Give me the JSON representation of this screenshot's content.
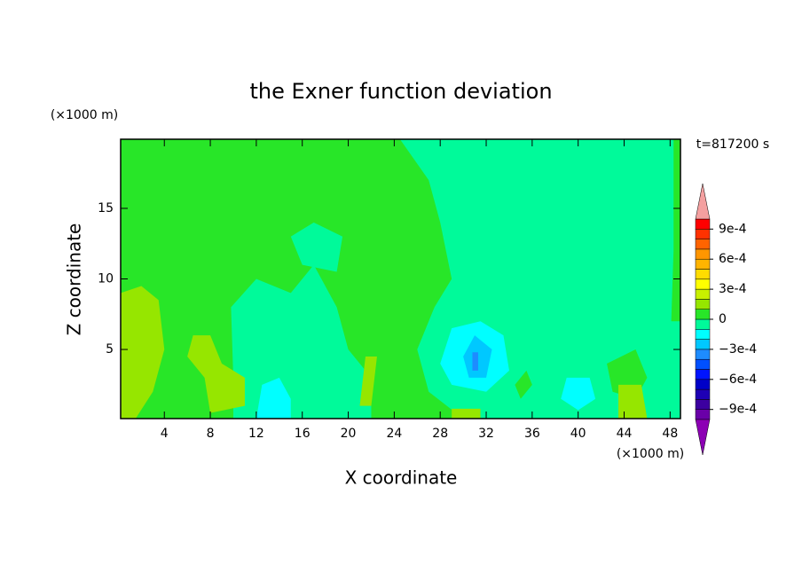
{
  "chart_data": {
    "type": "contour",
    "title": "the Exner function deviation",
    "x_label": "X coordinate",
    "y_label": "Z coordinate",
    "x_unit": "(×1000 m)",
    "y_unit": "(×1000 m)",
    "time_label": "t=817200 s",
    "xlim": [
      0.2,
      48.9
    ],
    "ylim": [
      0.1,
      19.9
    ],
    "xticks": [
      4,
      8,
      12,
      16,
      20,
      24,
      28,
      32,
      36,
      40,
      44,
      48
    ],
    "yticks": [
      5,
      10,
      15
    ],
    "background_level": 0,
    "colorbar": {
      "levels": [
        -0.001,
        -0.0009,
        -0.0008,
        -0.0007,
        -0.0006,
        -0.0005,
        -0.0004,
        -0.0003,
        -0.0002,
        -0.0001,
        0,
        0.0001,
        0.0002,
        0.0003,
        0.0004,
        0.0005,
        0.0006,
        0.0007,
        0.0008,
        0.0009,
        0.001
      ],
      "colors": [
        "#6a00a8",
        "#3c00a0",
        "#1e00b4",
        "#0000c8",
        "#0014ff",
        "#0050ff",
        "#1e8cff",
        "#00c8ff",
        "#00ffff",
        "#00fa9a",
        "#28e628",
        "#96e600",
        "#c8f000",
        "#ffff00",
        "#ffdc00",
        "#ffb400",
        "#ff9600",
        "#ff6400",
        "#ff3200",
        "#ff0000"
      ],
      "over_color": "#f4a0a0",
      "under_color": "#8c00b4",
      "ticks": [
        {
          "value": 0.0009,
          "label": "9e-4"
        },
        {
          "value": 0.0006,
          "label": "6e-4"
        },
        {
          "value": 0.0003,
          "label": "3e-4"
        },
        0,
        {
          "value": -0.0003,
          "label": "−3e-4"
        },
        {
          "value": -0.0006,
          "label": "−6e-4"
        },
        {
          "value": -0.0009,
          "label": "−9e-4"
        }
      ]
    },
    "regions": [
      {
        "level": -0.0001,
        "x": [
          24.5,
          48.9,
          48.9,
          30,
          27,
          26,
          27.5,
          29,
          28,
          27
        ],
        "y": [
          19.9,
          19.9,
          0.1,
          0.1,
          2,
          5,
          8,
          10,
          14,
          17
        ]
      },
      {
        "level": 0,
        "x": [
          48.3,
          48.9,
          48.9,
          48.1,
          48.3
        ],
        "y": [
          19.9,
          19.9,
          7,
          7,
          12
        ]
      },
      {
        "level": -0.0001,
        "x": [
          10,
          10,
          9.8,
          12,
          15,
          17,
          19,
          20,
          22,
          22
        ],
        "y": [
          0.1,
          3,
          8,
          10,
          9,
          11,
          8,
          5,
          3,
          0.1
        ]
      },
      {
        "level": -0.0001,
        "x": [
          15,
          17,
          19.5,
          19,
          16
        ],
        "y": [
          13,
          14,
          13,
          10.5,
          11
        ]
      },
      {
        "level": -0.0002,
        "x": [
          28,
          29,
          31.5,
          33.5,
          34,
          32,
          29
        ],
        "y": [
          4,
          6.5,
          7,
          6,
          3.5,
          2,
          2.5
        ]
      },
      {
        "level": -0.0003,
        "x": [
          30,
          31,
          32.5,
          32,
          30.5
        ],
        "y": [
          4.5,
          6,
          5,
          3,
          3
        ]
      },
      {
        "level": -0.0004,
        "x": [
          30.8,
          30.8,
          31.3,
          31.3
        ],
        "y": [
          3.5,
          4.8,
          4.8,
          3.5
        ]
      },
      {
        "level": -0.0002,
        "x": [
          12,
          12.5,
          14,
          15,
          15
        ],
        "y": [
          0.1,
          2.5,
          3,
          1.5,
          0.1
        ]
      },
      {
        "level": -0.0002,
        "x": [
          38.5,
          39,
          41,
          41.5,
          40
        ],
        "y": [
          1.5,
          3,
          3,
          1.5,
          0.7
        ]
      },
      {
        "level": 0,
        "x": [
          42.5,
          43,
          45,
          46,
          45
        ],
        "y": [
          4,
          2,
          1.5,
          3,
          5
        ]
      },
      {
        "level": 0,
        "x": [
          34.5,
          35.5,
          36,
          35
        ],
        "y": [
          2.5,
          3.5,
          2.5,
          1.5
        ]
      },
      {
        "level": 0.0001,
        "x": [
          0.2,
          2,
          3.5,
          4,
          3,
          1.5,
          0.2
        ],
        "y": [
          9,
          9.5,
          8.5,
          5,
          2,
          0.1,
          0.1
        ]
      },
      {
        "level": 0.0001,
        "x": [
          6.5,
          8,
          9,
          11,
          11,
          8,
          7.5,
          6
        ],
        "y": [
          6,
          6,
          4,
          3,
          1,
          0.5,
          3,
          4.5
        ]
      },
      {
        "level": 0.0001,
        "x": [
          21,
          21.5,
          22.5,
          22
        ],
        "y": [
          1,
          4.5,
          4.5,
          1
        ]
      },
      {
        "level": 0.0001,
        "x": [
          43.5,
          43.5,
          45.5,
          46
        ],
        "y": [
          0.1,
          2.5,
          2.5,
          0.1
        ]
      },
      {
        "level": 0.0001,
        "x": [
          29,
          29,
          31.5,
          31.5
        ],
        "y": [
          0.1,
          0.8,
          0.8,
          0.1
        ]
      }
    ]
  }
}
